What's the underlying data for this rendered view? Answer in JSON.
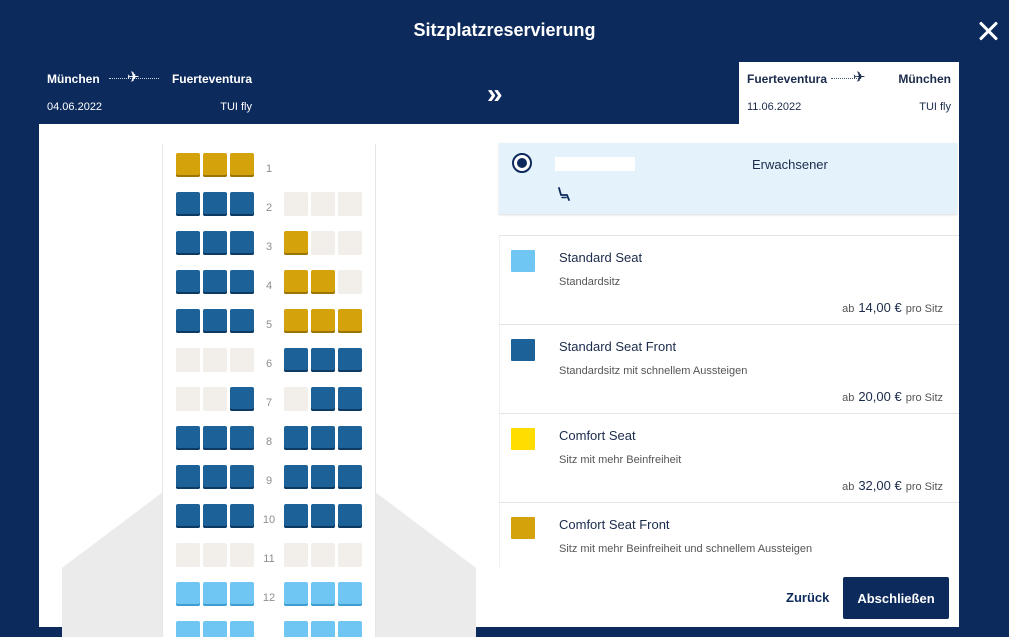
{
  "header": {
    "title": "Sitzplatzreservierung"
  },
  "outbound": {
    "from": "München",
    "to": "Fuerteventura",
    "date": "04.06.2022",
    "airline": "TUI fly"
  },
  "return": {
    "from": "Fuerteventura",
    "to": "München",
    "date": "11.06.2022",
    "airline": "TUI fly"
  },
  "icons": {
    "close": "close-icon",
    "plane": "airplane-icon",
    "switch": "chevron-double-right-icon",
    "seat": "seat-icon"
  },
  "glyphs": {
    "plane": "✈",
    "switch": "»"
  },
  "passenger": {
    "name": "",
    "type": "Erwachsener",
    "selected": true
  },
  "seat_colors": {
    "free": "#f2eee9",
    "standard": "#6fc6f2",
    "front": "#1c6299",
    "comfort_front": "#d4a20a"
  },
  "seat_map": {
    "rows": [
      {
        "num": "1",
        "seats": [
          "comfort_front",
          "comfort_front",
          "comfort_front",
          null,
          null,
          null
        ]
      },
      {
        "num": "2",
        "seats": [
          "front",
          "front",
          "front",
          "free",
          "free",
          "free"
        ]
      },
      {
        "num": "3",
        "seats": [
          "front",
          "front",
          "front",
          "comfort_front",
          "free",
          "free"
        ]
      },
      {
        "num": "4",
        "seats": [
          "front",
          "front",
          "front",
          "comfort_front",
          "comfort_front",
          "free"
        ]
      },
      {
        "num": "5",
        "seats": [
          "front",
          "front",
          "front",
          "comfort_front",
          "comfort_front",
          "comfort_front"
        ]
      },
      {
        "num": "6",
        "seats": [
          "free",
          "free",
          "free",
          "front",
          "front",
          "front"
        ]
      },
      {
        "num": "7",
        "seats": [
          "free",
          "free",
          "front",
          "free",
          "front",
          "front"
        ]
      },
      {
        "num": "8",
        "seats": [
          "front",
          "front",
          "front",
          "front",
          "front",
          "front"
        ]
      },
      {
        "num": "9",
        "seats": [
          "front",
          "front",
          "front",
          "front",
          "front",
          "front"
        ]
      },
      {
        "num": "10",
        "seats": [
          "front",
          "front",
          "front",
          "front",
          "front",
          "front"
        ]
      },
      {
        "num": "11",
        "seats": [
          "free",
          "free",
          "free",
          "free",
          "free",
          "free"
        ]
      },
      {
        "num": "12",
        "seats": [
          "standard",
          "standard",
          "standard",
          "standard",
          "standard",
          "standard"
        ]
      },
      {
        "num": "",
        "seats": [
          "standard",
          "standard",
          "standard",
          "standard",
          "standard",
          "standard"
        ]
      }
    ]
  },
  "legend": [
    {
      "title": "Standard Seat",
      "desc": "Standardsitz",
      "prefix": "ab",
      "price": "14,00 €",
      "suffix": "pro Sitz",
      "color": "#6fc6f2"
    },
    {
      "title": "Standard Seat Front",
      "desc": "Standardsitz mit schnellem Aussteigen",
      "prefix": "ab",
      "price": "20,00 €",
      "suffix": "pro Sitz",
      "color": "#1c6299"
    },
    {
      "title": "Comfort Seat",
      "desc": "Sitz mit mehr Beinfreiheit",
      "prefix": "ab",
      "price": "32,00 €",
      "suffix": "pro Sitz",
      "color": "#ffdd00"
    },
    {
      "title": "Comfort Seat Front",
      "desc": "Sitz mit mehr Beinfreiheit und schnellem Aussteigen",
      "prefix": "",
      "price": "",
      "suffix": "",
      "color": "#d4a20a"
    }
  ],
  "footer": {
    "back_label": "Zurück",
    "finish_label": "Abschließen"
  }
}
